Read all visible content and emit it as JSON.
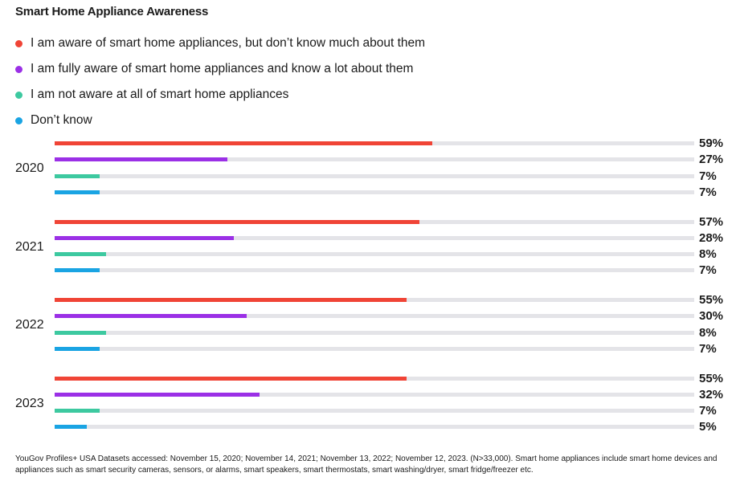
{
  "title": "Smart Home Appliance Awareness",
  "chart_data": {
    "type": "bar",
    "orientation": "horizontal",
    "title": "Smart Home Appliance Awareness",
    "categories": [
      "2020",
      "2021",
      "2022",
      "2023"
    ],
    "xlim": [
      0,
      100
    ],
    "value_suffix": "%",
    "series": [
      {
        "name": "I am aware of smart home appliances, but don’t know much about them",
        "color": "#f04436",
        "values": [
          59,
          57,
          55,
          55
        ]
      },
      {
        "name": "I am fully aware of smart home appliances and know a lot about them",
        "color": "#9b30e6",
        "values": [
          27,
          28,
          30,
          32
        ]
      },
      {
        "name": "I am not aware at all of smart home appliances",
        "color": "#3dc9a0",
        "values": [
          7,
          8,
          8,
          7
        ]
      },
      {
        "name": "Don’t know",
        "color": "#1aa4e3",
        "values": [
          7,
          7,
          7,
          5
        ]
      }
    ],
    "legend": "top-left",
    "grid": false
  },
  "footnote": "YouGov Profiles+ USA Datasets accessed: November 15, 2020; November 14, 2021; November 13, 2022; November 12, 2023. (N>33,000). Smart home appliances include smart home devices and appliances such as smart security cameras, sensors, or alarms, smart speakers, smart thermostats, smart washing/dryer, smart fridge/freezer etc."
}
